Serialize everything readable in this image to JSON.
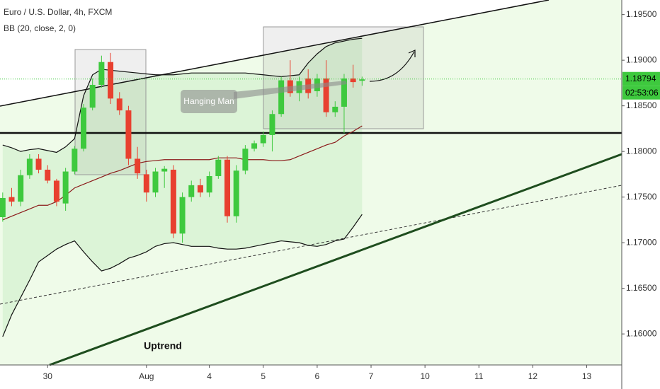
{
  "chart_data": {
    "type": "candlestick",
    "title": "Euro / U.S. Dollar, 4h, FXCM",
    "up_color": "#3ec93e",
    "down_color": "#e8402f",
    "open": [
      1.1728,
      1.175,
      1.1745,
      1.1774,
      1.1792,
      1.178,
      1.1768,
      1.1743,
      1.1778,
      1.1803,
      1.1848,
      1.1873,
      1.1898,
      1.1858,
      1.1845,
      1.1792,
      1.1775,
      1.1755,
      1.1778,
      1.178,
      1.171,
      1.175,
      1.1763,
      1.1755,
      1.1773,
      1.1791,
      1.1729,
      1.1779,
      1.1803,
      1.1809,
      1.1818,
      1.1841,
      1.1878,
      1.1864,
      1.188,
      1.1866,
      1.188,
      1.1843,
      1.1849,
      1.188,
      1.18775
    ],
    "high": [
      1.1755,
      1.176,
      1.178,
      1.1797,
      1.1797,
      1.1785,
      1.177,
      1.1782,
      1.1806,
      1.1852,
      1.188,
      1.1905,
      1.1908,
      1.1865,
      1.185,
      1.1805,
      1.178,
      1.1782,
      1.1784,
      1.1785,
      1.1755,
      1.1768,
      1.177,
      1.1778,
      1.1795,
      1.1795,
      1.1785,
      1.1807,
      1.1812,
      1.1822,
      1.1845,
      1.1882,
      1.19,
      1.1882,
      1.189,
      1.1885,
      1.19,
      1.1855,
      1.1885,
      1.1895,
      1.1882
    ],
    "low": [
      1.1723,
      1.174,
      1.174,
      1.177,
      1.1776,
      1.1765,
      1.174,
      1.1735,
      1.1775,
      1.18,
      1.1845,
      1.187,
      1.1852,
      1.184,
      1.1785,
      1.177,
      1.1745,
      1.175,
      1.176,
      1.1705,
      1.17,
      1.1745,
      1.175,
      1.175,
      1.177,
      1.1722,
      1.1722,
      1.1775,
      1.18,
      1.1805,
      1.18,
      1.1838,
      1.186,
      1.1855,
      1.1858,
      1.186,
      1.1838,
      1.1838,
      1.182,
      1.187,
      1.1872
    ],
    "close": [
      1.1749,
      1.1745,
      1.1774,
      1.1792,
      1.178,
      1.1768,
      1.1745,
      1.1778,
      1.1803,
      1.1848,
      1.1873,
      1.1898,
      1.1858,
      1.1845,
      1.1792,
      1.1776,
      1.1755,
      1.1778,
      1.1781,
      1.171,
      1.175,
      1.1763,
      1.1755,
      1.1773,
      1.1791,
      1.1729,
      1.1779,
      1.1803,
      1.1809,
      1.1818,
      1.1841,
      1.1878,
      1.1864,
      1.1877,
      1.1864,
      1.188,
      1.1843,
      1.1849,
      1.188,
      1.1876,
      1.1879
    ],
    "indicator": {
      "label": "BB (20, close, 2, 0)",
      "color": "#111111",
      "basis_color": "#8b1a1a",
      "upper": [
        1.1807,
        1.1804,
        1.18,
        1.1802,
        1.1803,
        1.1801,
        1.1799,
        1.1805,
        1.1814,
        1.1861,
        1.1884,
        1.189,
        1.1889,
        1.1888,
        1.1887,
        1.1886,
        1.1885,
        1.1884,
        1.1884,
        1.1884,
        1.1885,
        1.1886,
        1.1886,
        1.1886,
        1.1886,
        1.1886,
        1.1886,
        1.1886,
        1.1885,
        1.1884,
        1.1883,
        1.1882,
        1.1883,
        1.1884,
        1.1897,
        1.1907,
        1.1915,
        1.1919,
        1.1921,
        1.1923,
        1.1924
      ],
      "basis": [
        1.1725,
        1.1729,
        1.1733,
        1.1737,
        1.1741,
        1.1741,
        1.1745,
        1.1752,
        1.176,
        1.1764,
        1.1768,
        1.1772,
        1.1776,
        1.1779,
        1.1783,
        1.1787,
        1.1789,
        1.179,
        1.1791,
        1.1791,
        1.1791,
        1.1791,
        1.1791,
        1.1791,
        1.1793,
        1.1793,
        1.1793,
        1.1791,
        1.1791,
        1.1791,
        1.179,
        1.179,
        1.1791,
        1.1795,
        1.1799,
        1.1803,
        1.1807,
        1.181,
        1.1817,
        1.1822,
        1.1828
      ],
      "lower": [
        1.1597,
        1.1621,
        1.164,
        1.1659,
        1.1679,
        1.1686,
        1.1693,
        1.1698,
        1.1702,
        1.169,
        1.1679,
        1.1669,
        1.1672,
        1.1677,
        1.1683,
        1.1686,
        1.169,
        1.1696,
        1.1699,
        1.17,
        1.1698,
        1.1696,
        1.1696,
        1.1696,
        1.1694,
        1.1693,
        1.1693,
        1.1694,
        1.1696,
        1.1698,
        1.17,
        1.1702,
        1.1701,
        1.17,
        1.1697,
        1.1696,
        1.1698,
        1.1702,
        1.1704,
        1.1717,
        1.1731
      ]
    },
    "last_price": 1.18794,
    "countdown": "02:53:06",
    "annotations": [
      "Hanging Man",
      "Uptrend"
    ],
    "xlim": [
      -0.3,
      68.9
    ],
    "xticks": [
      {
        "value": 5,
        "label": "30"
      },
      {
        "value": 16,
        "label": "Aug"
      },
      {
        "value": 23,
        "label": "4"
      },
      {
        "value": 29,
        "label": "5"
      },
      {
        "value": 35,
        "label": "6"
      },
      {
        "value": 41,
        "label": "7"
      },
      {
        "value": 47,
        "label": "10"
      },
      {
        "value": 53,
        "label": "11"
      },
      {
        "value": 59,
        "label": "12"
      },
      {
        "value": 65,
        "label": "13"
      }
    ],
    "ylim": [
      1.1566,
      1.1966
    ],
    "yticks": [
      {
        "value": 1.16,
        "label": "1.16000"
      },
      {
        "value": 1.165,
        "label": "1.16500"
      },
      {
        "value": 1.17,
        "label": "1.17000"
      },
      {
        "value": 1.175,
        "label": "1.17500"
      },
      {
        "value": 1.18,
        "label": "1.18000"
      },
      {
        "value": 1.185,
        "label": "1.18500"
      },
      {
        "value": 1.19,
        "label": "1.19000"
      },
      {
        "value": 1.195,
        "label": "1.19500"
      }
    ],
    "grid": false
  }
}
